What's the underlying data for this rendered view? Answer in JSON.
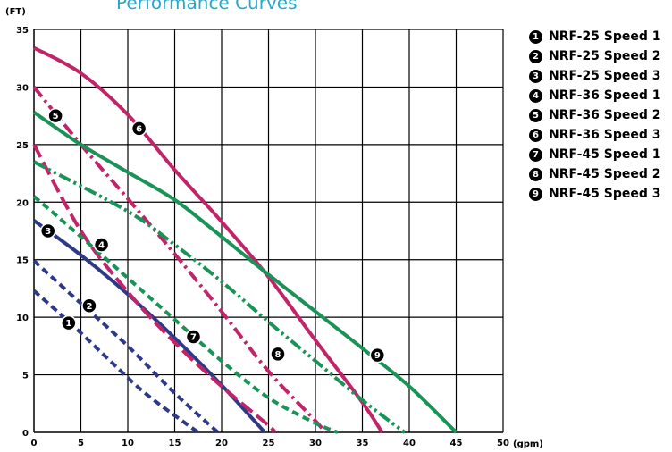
{
  "chart_data": {
    "type": "line",
    "title": "Performance Curves",
    "ylabel": "(FT)",
    "xlabel": "(gpm)",
    "xlim": [
      0,
      50
    ],
    "ylim": [
      0,
      35
    ],
    "xticks": [
      0,
      5,
      10,
      15,
      20,
      25,
      30,
      35,
      40,
      45,
      50
    ],
    "yticks": [
      0,
      5,
      10,
      15,
      20,
      25,
      30,
      35
    ],
    "grid": true,
    "legend_position": "right",
    "series": [
      {
        "id": "1",
        "name": "NRF-25 Speed 1",
        "color": "#2e3a87",
        "dash": "dashed",
        "points": [
          [
            0,
            12.3
          ],
          [
            4,
            9.4
          ],
          [
            8,
            6.3
          ],
          [
            12,
            3.3
          ],
          [
            17.5,
            0
          ]
        ],
        "marker_at": [
          3.7,
          9.5
        ]
      },
      {
        "id": "2",
        "name": "NRF-25 Speed 2",
        "color": "#2e3a87",
        "dash": "dashed",
        "points": [
          [
            0,
            14.9
          ],
          [
            5,
            11.2
          ],
          [
            10,
            7.5
          ],
          [
            15,
            3.4
          ],
          [
            19.6,
            0
          ]
        ],
        "marker_at": [
          5.9,
          11.0
        ]
      },
      {
        "id": "3",
        "name": "NRF-25 Speed 3",
        "color": "#2e3a87",
        "dash": "solid",
        "points": [
          [
            0,
            18.4
          ],
          [
            5,
            15.4
          ],
          [
            10,
            12.0
          ],
          [
            15,
            8.2
          ],
          [
            20,
            4.1
          ],
          [
            24.6,
            0
          ]
        ],
        "marker_at": [
          1.5,
          17.5
        ]
      },
      {
        "id": "4",
        "name": "NRF-36 Speed 1",
        "color": "#c2246a",
        "dash": "longdash",
        "points": [
          [
            0,
            25
          ],
          [
            5,
            17.5
          ],
          [
            10,
            12.2
          ],
          [
            15,
            7.8
          ],
          [
            20,
            4.0
          ],
          [
            25,
            0.6
          ],
          [
            25.6,
            0
          ]
        ],
        "marker_at": [
          7.2,
          16.3
        ]
      },
      {
        "id": "5",
        "name": "NRF-36 Speed 2",
        "color": "#c2246a",
        "dash": "dashdot",
        "points": [
          [
            0,
            30
          ],
          [
            5,
            25
          ],
          [
            10,
            20.3
          ],
          [
            15,
            15.5
          ],
          [
            20,
            10.5
          ],
          [
            25,
            5.3
          ],
          [
            30,
            1.0
          ],
          [
            31,
            0
          ]
        ],
        "marker_at": [
          2.3,
          27.5
        ]
      },
      {
        "id": "6",
        "name": "NRF-36 Speed 3",
        "color": "#c2246a",
        "dash": "solid",
        "points": [
          [
            0,
            33.4
          ],
          [
            5,
            31.2
          ],
          [
            10,
            27.6
          ],
          [
            15,
            22.8
          ],
          [
            20,
            18.3
          ],
          [
            25,
            13.5
          ],
          [
            30,
            8.0
          ],
          [
            35,
            2.6
          ],
          [
            37.1,
            0
          ]
        ],
        "marker_at": [
          11.2,
          26.4
        ]
      },
      {
        "id": "7",
        "name": "NRF-45 Speed 1",
        "color": "#1a9357",
        "dash": "dashed",
        "points": [
          [
            0,
            20.5
          ],
          [
            5,
            17
          ],
          [
            10,
            13.4
          ],
          [
            15,
            9.8
          ],
          [
            20,
            6.2
          ],
          [
            25,
            3.0
          ],
          [
            30,
            0.8
          ],
          [
            32.4,
            0
          ]
        ],
        "marker_at": [
          17.0,
          8.3
        ]
      },
      {
        "id": "8",
        "name": "NRF-45 Speed 2",
        "color": "#1a9357",
        "dash": "dashdotdot",
        "points": [
          [
            0,
            23.5
          ],
          [
            10,
            19.2
          ],
          [
            15,
            16.3
          ],
          [
            20,
            13.1
          ],
          [
            25,
            9.6
          ],
          [
            30,
            6.2
          ],
          [
            35,
            2.8
          ],
          [
            39.5,
            0
          ]
        ],
        "marker_at": [
          26.0,
          6.8
        ]
      },
      {
        "id": "9",
        "name": "NRF-45 Speed 3",
        "color": "#1a9357",
        "dash": "solid",
        "points": [
          [
            0,
            27.8
          ],
          [
            5,
            25
          ],
          [
            10,
            22.6
          ],
          [
            15,
            20.2
          ],
          [
            20,
            17
          ],
          [
            25,
            13.7
          ],
          [
            30,
            10.5
          ],
          [
            35,
            7.3
          ],
          [
            40,
            4.0
          ],
          [
            45,
            0
          ]
        ],
        "marker_at": [
          36.6,
          6.7
        ]
      }
    ]
  }
}
